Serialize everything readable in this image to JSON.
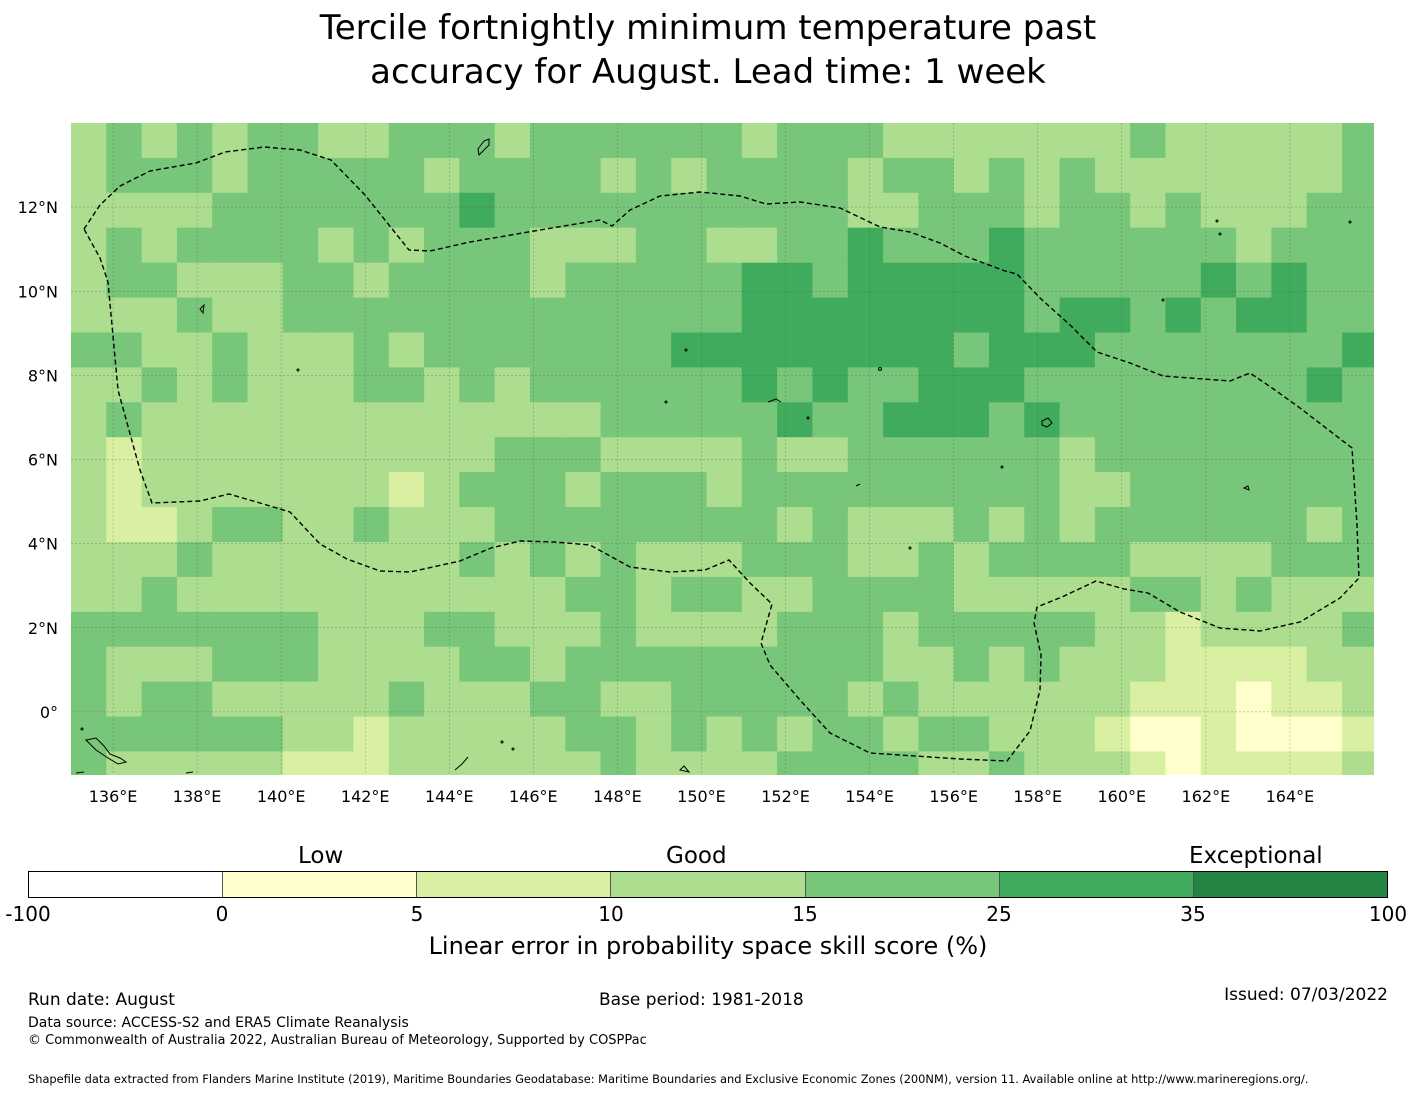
{
  "title_line1": "Tercile fortnightly minimum temperature past",
  "title_line2": "accuracy for August. Lead time: 1 week",
  "map": {
    "lon_ticks": [
      "136°E",
      "138°E",
      "140°E",
      "142°E",
      "144°E",
      "146°E",
      "148°E",
      "150°E",
      "152°E",
      "154°E",
      "156°E",
      "158°E",
      "160°E",
      "162°E",
      "164°E"
    ],
    "lat_ticks": [
      "12°N",
      "10°N",
      "8°N",
      "6°N",
      "4°N",
      "2°N",
      "0°"
    ],
    "lon_range": [
      135,
      166
    ],
    "lat_range": [
      -1.5,
      14
    ]
  },
  "colorbar": {
    "categories": [
      "Low",
      "Good",
      "Exceptional"
    ],
    "ticks": [
      "-100",
      "0",
      "5",
      "10",
      "15",
      "25",
      "35",
      "100"
    ],
    "colors": [
      "#ffffff",
      "#ffffcc",
      "#d9f0a3",
      "#addd8e",
      "#78c679",
      "#41ab5d",
      "#238443"
    ],
    "label": "Linear error in probability space skill score (%)"
  },
  "footer": {
    "run_date": "Run date: August",
    "base_period": "Base period: 1981-2018",
    "issued": "Issued: 07/03/2022",
    "data_source": "Data source: ACCESS-S2 and ERA5 Climate Reanalysis",
    "copyright": "© Commonwealth of Australia 2022, Australian Bureau of Meteorology, Supported by COSPPac",
    "shapefile": "Shapefile data extracted from Flanders Marine Institute (2019), Maritime Boundaries Geodatabase: Maritime Boundaries and Exclusive Economic Zones (200NM), version 11. Available online at http://www.marineregions.org/."
  }
}
